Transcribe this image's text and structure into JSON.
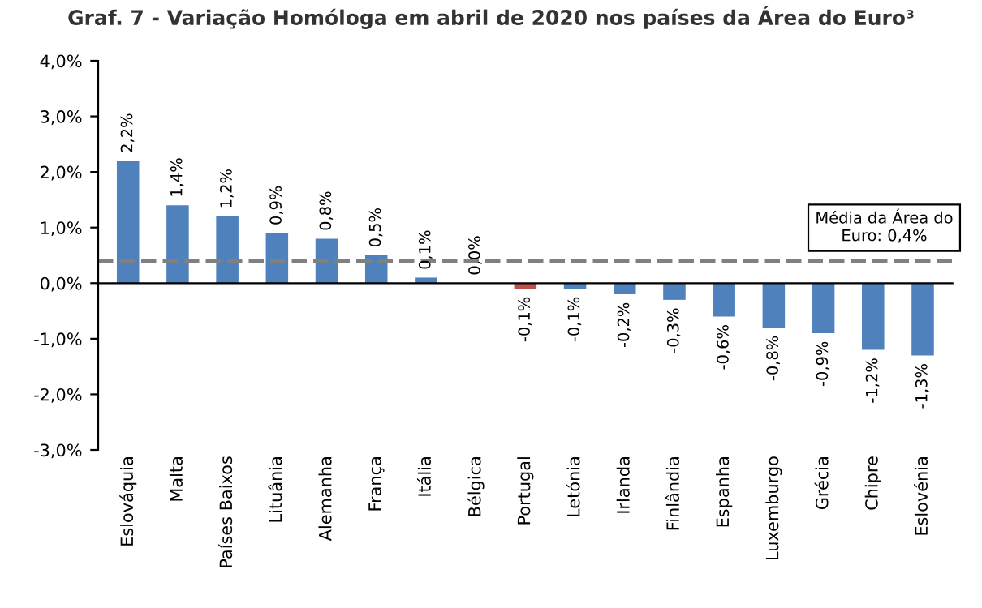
{
  "chart_data": {
    "type": "bar",
    "title": "Graf. 7 - Variação Homóloga em abril de 2020 nos países da Área do Euro³",
    "categories": [
      "Eslováquia",
      "Malta",
      "Países Baixos",
      "Lituânia",
      "Alemanha",
      "França",
      "Itália",
      "Bélgica",
      "Portugal",
      "Letónia",
      "Irlanda",
      "Finlândia",
      "Espanha",
      "Luxemburgo",
      "Grécia",
      "Chipre",
      "Eslovénia"
    ],
    "values": [
      2.2,
      1.4,
      1.2,
      0.9,
      0.8,
      0.5,
      0.1,
      0.0,
      -0.1,
      -0.1,
      -0.2,
      -0.3,
      -0.6,
      -0.8,
      -0.9,
      -1.2,
      -1.3
    ],
    "colors": [
      "#4f81bd",
      "#4f81bd",
      "#4f81bd",
      "#4f81bd",
      "#4f81bd",
      "#4f81bd",
      "#4f81bd",
      "#4f81bd",
      "#c0504d",
      "#4f81bd",
      "#4f81bd",
      "#4f81bd",
      "#4f81bd",
      "#4f81bd",
      "#4f81bd",
      "#4f81bd",
      "#4f81bd"
    ],
    "value_labels": [
      "2,2%",
      "1,4%",
      "1,2%",
      "0,9%",
      "0,8%",
      "0,5%",
      "0,1%",
      "0,0%",
      "-0,1%",
      "-0,1%",
      "-0,2%",
      "-0,3%",
      "-0,6%",
      "-0,8%",
      "-0,9%",
      "-1,2%",
      "-1,3%"
    ],
    "ylim": [
      -3,
      4
    ],
    "yticks": [
      {
        "value": -3,
        "label": "-3,0%"
      },
      {
        "value": -2,
        "label": "-2,0%"
      },
      {
        "value": -1,
        "label": "-1,0%"
      },
      {
        "value": 0,
        "label": "0,0%"
      },
      {
        "value": 1,
        "label": "1,0%"
      },
      {
        "value": 2,
        "label": "2,0%"
      },
      {
        "value": 3,
        "label": "3,0%"
      },
      {
        "value": 4,
        "label": "4,0%"
      }
    ],
    "ref_lines": [
      {
        "axis": "y",
        "value": 0.4,
        "label": "Média da Área do\nEuro: 0,4%",
        "color": "#808080",
        "line_style": "dashed"
      }
    ],
    "legend": false
  }
}
